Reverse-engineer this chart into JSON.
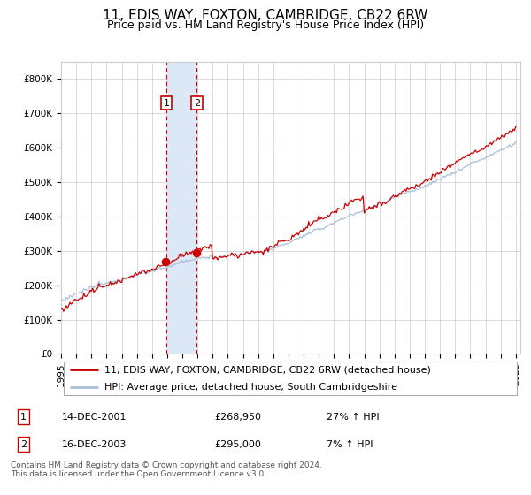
{
  "title": "11, EDIS WAY, FOXTON, CAMBRIDGE, CB22 6RW",
  "subtitle": "Price paid vs. HM Land Registry's House Price Index (HPI)",
  "bg_color": "#ffffff",
  "plot_bg_color": "#ffffff",
  "grid_color": "#cccccc",
  "hpi_color": "#aabfd8",
  "price_color": "#cc0000",
  "highlight_color": "#dce8f5",
  "dashed_line_color": "#cc0000",
  "ylim": [
    0,
    850000
  ],
  "yticks": [
    0,
    100000,
    200000,
    300000,
    400000,
    500000,
    600000,
    700000,
    800000
  ],
  "ytick_labels": [
    "£0",
    "£100K",
    "£200K",
    "£300K",
    "£400K",
    "£500K",
    "£600K",
    "£700K",
    "£800K"
  ],
  "sale1_year": 2001.95,
  "sale1_value": 268950,
  "sale1_label": "1",
  "sale2_year": 2003.95,
  "sale2_value": 295000,
  "sale2_label": "2",
  "legend_line1": "11, EDIS WAY, FOXTON, CAMBRIDGE, CB22 6RW (detached house)",
  "legend_line2": "HPI: Average price, detached house, South Cambridgeshire",
  "table_row1": [
    "1",
    "14-DEC-2001",
    "£268,950",
    "27% ↑ HPI"
  ],
  "table_row2": [
    "2",
    "16-DEC-2003",
    "£295,000",
    "7% ↑ HPI"
  ],
  "footer": "Contains HM Land Registry data © Crown copyright and database right 2024.\nThis data is licensed under the Open Government Licence v3.0.",
  "title_fontsize": 11,
  "subtitle_fontsize": 9,
  "tick_fontsize": 7.5,
  "legend_fontsize": 8,
  "table_fontsize": 8,
  "footer_fontsize": 6.5
}
